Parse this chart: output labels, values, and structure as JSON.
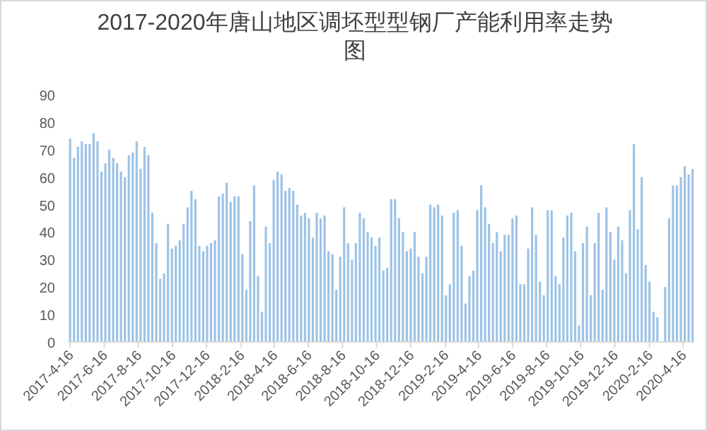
{
  "chart_data": {
    "type": "bar",
    "title": "2017-2020年唐山地区调坯型型钢厂产能利用率走势图",
    "color": "#9dc3e6",
    "x": [
      "2017-04-16",
      "2017-04-23",
      "2017-04-30",
      "2017-05-07",
      "2017-05-14",
      "2017-05-21",
      "2017-05-28",
      "2017-06-04",
      "2017-06-11",
      "2017-06-18",
      "2017-06-25",
      "2017-07-02",
      "2017-07-09",
      "2017-07-16",
      "2017-07-23",
      "2017-07-30",
      "2017-08-06",
      "2017-08-13",
      "2017-08-20",
      "2017-08-27",
      "2017-09-03",
      "2017-09-10",
      "2017-09-17",
      "2017-09-24",
      "2017-10-01",
      "2017-10-08",
      "2017-10-15",
      "2017-10-22",
      "2017-10-29",
      "2017-11-05",
      "2017-11-12",
      "2017-11-19",
      "2017-11-26",
      "2017-12-03",
      "2017-12-10",
      "2017-12-17",
      "2017-12-24",
      "2017-12-31",
      "2018-01-07",
      "2018-01-14",
      "2018-01-21",
      "2018-01-28",
      "2018-02-04",
      "2018-02-11",
      "2018-02-18",
      "2018-02-25",
      "2018-03-04",
      "2018-03-11",
      "2018-03-18",
      "2018-03-25",
      "2018-04-01",
      "2018-04-08",
      "2018-04-15",
      "2018-04-22",
      "2018-04-29",
      "2018-05-06",
      "2018-05-13",
      "2018-05-20",
      "2018-05-27",
      "2018-06-03",
      "2018-06-10",
      "2018-06-17",
      "2018-06-24",
      "2018-07-01",
      "2018-07-08",
      "2018-07-15",
      "2018-07-22",
      "2018-07-29",
      "2018-08-05",
      "2018-08-12",
      "2018-08-19",
      "2018-08-26",
      "2018-09-02",
      "2018-09-09",
      "2018-09-16",
      "2018-09-23",
      "2018-09-30",
      "2018-10-07",
      "2018-10-14",
      "2018-10-21",
      "2018-10-28",
      "2018-11-04",
      "2018-11-11",
      "2018-11-18",
      "2018-11-25",
      "2018-12-02",
      "2018-12-09",
      "2018-12-16",
      "2018-12-23",
      "2018-12-30",
      "2019-01-06",
      "2019-01-13",
      "2019-01-20",
      "2019-01-27",
      "2019-02-03",
      "2019-02-10",
      "2019-02-17",
      "2019-02-24",
      "2019-03-03",
      "2019-03-10",
      "2019-03-17",
      "2019-03-24",
      "2019-03-31",
      "2019-04-07",
      "2019-04-14",
      "2019-04-21",
      "2019-04-28",
      "2019-05-05",
      "2019-05-12",
      "2019-05-19",
      "2019-05-26",
      "2019-06-02",
      "2019-06-09",
      "2019-06-16",
      "2019-06-23",
      "2019-06-30",
      "2019-07-07",
      "2019-07-14",
      "2019-07-21",
      "2019-07-28",
      "2019-08-04",
      "2019-08-11",
      "2019-08-18",
      "2019-08-25",
      "2019-09-01",
      "2019-09-08",
      "2019-09-15",
      "2019-09-22",
      "2019-09-29",
      "2019-10-06",
      "2019-10-13",
      "2019-10-20",
      "2019-10-27",
      "2019-11-03",
      "2019-11-10",
      "2019-11-17",
      "2019-11-24",
      "2019-12-01",
      "2019-12-08",
      "2019-12-15",
      "2019-12-22",
      "2019-12-29",
      "2020-01-05",
      "2020-01-12",
      "2020-01-19",
      "2020-01-26",
      "2020-02-02",
      "2020-02-09",
      "2020-02-16",
      "2020-02-23",
      "2020-03-01",
      "2020-03-08",
      "2020-03-15",
      "2020-03-22",
      "2020-03-29",
      "2020-04-05",
      "2020-04-12",
      "2020-04-19",
      "2020-04-26",
      "2020-05-03"
    ],
    "values": [
      74,
      67,
      71,
      73,
      72,
      72,
      76,
      73,
      62,
      65,
      70,
      67,
      65,
      62,
      60,
      68,
      69,
      73,
      63,
      71,
      68,
      47,
      36,
      23,
      25,
      43,
      34,
      35,
      37,
      43,
      49,
      55,
      52,
      35,
      33,
      35,
      36,
      37,
      53,
      54,
      58,
      51,
      53,
      53,
      32,
      19,
      44,
      57,
      24,
      11,
      42,
      36,
      59,
      62,
      61,
      55,
      56,
      55,
      50,
      46,
      47,
      45,
      38,
      47,
      45,
      46,
      33,
      32,
      19,
      31,
      49,
      36,
      30,
      36,
      47,
      45,
      40,
      38,
      35,
      38,
      26,
      27,
      52,
      52,
      45,
      40,
      33,
      34,
      40,
      31,
      25,
      31,
      50,
      49,
      50,
      46,
      17,
      21,
      47,
      48,
      35,
      14,
      24,
      26,
      48,
      57,
      49,
      43,
      36,
      40,
      33,
      39,
      39,
      45,
      46,
      21,
      21,
      34,
      49,
      39,
      22,
      17,
      48,
      48,
      24,
      21,
      38,
      46,
      47,
      33,
      6,
      36,
      42,
      17,
      36,
      47,
      19,
      49,
      40,
      30,
      42,
      37,
      25,
      48,
      72,
      41,
      60,
      28,
      22,
      11,
      9,
      null,
      20,
      45,
      57,
      57,
      60,
      64,
      61,
      63
    ],
    "xlim": [
      "2017-04-12",
      "2020-05-06"
    ],
    "xticks": [
      {
        "value": "2017-04-16",
        "label": "2017-4-16"
      },
      {
        "value": "2017-06-16",
        "label": "2017-6-16"
      },
      {
        "value": "2017-08-16",
        "label": "2017-8-16"
      },
      {
        "value": "2017-10-16",
        "label": "2017-10-16"
      },
      {
        "value": "2017-12-16",
        "label": "2017-12-16"
      },
      {
        "value": "2018-02-16",
        "label": "2018-2-16"
      },
      {
        "value": "2018-04-16",
        "label": "2018-4-16"
      },
      {
        "value": "2018-06-16",
        "label": "2018-6-16"
      },
      {
        "value": "2018-08-16",
        "label": "2018-8-16"
      },
      {
        "value": "2018-10-16",
        "label": "2018-10-16"
      },
      {
        "value": "2018-12-16",
        "label": "2018-12-16"
      },
      {
        "value": "2019-02-16",
        "label": "2019-2-16"
      },
      {
        "value": "2019-04-16",
        "label": "2019-4-16"
      },
      {
        "value": "2019-06-16",
        "label": "2019-6-16"
      },
      {
        "value": "2019-08-16",
        "label": "2019-8-16"
      },
      {
        "value": "2019-10-16",
        "label": "2019-10-16"
      },
      {
        "value": "2019-12-16",
        "label": "2019-12-16"
      },
      {
        "value": "2020-02-16",
        "label": "2020-2-16"
      },
      {
        "value": "2020-04-16",
        "label": "2020-4-16"
      }
    ],
    "ylim": [
      0,
      90
    ],
    "yticks": [
      0,
      10,
      20,
      30,
      40,
      50,
      60,
      70,
      80,
      90
    ]
  }
}
